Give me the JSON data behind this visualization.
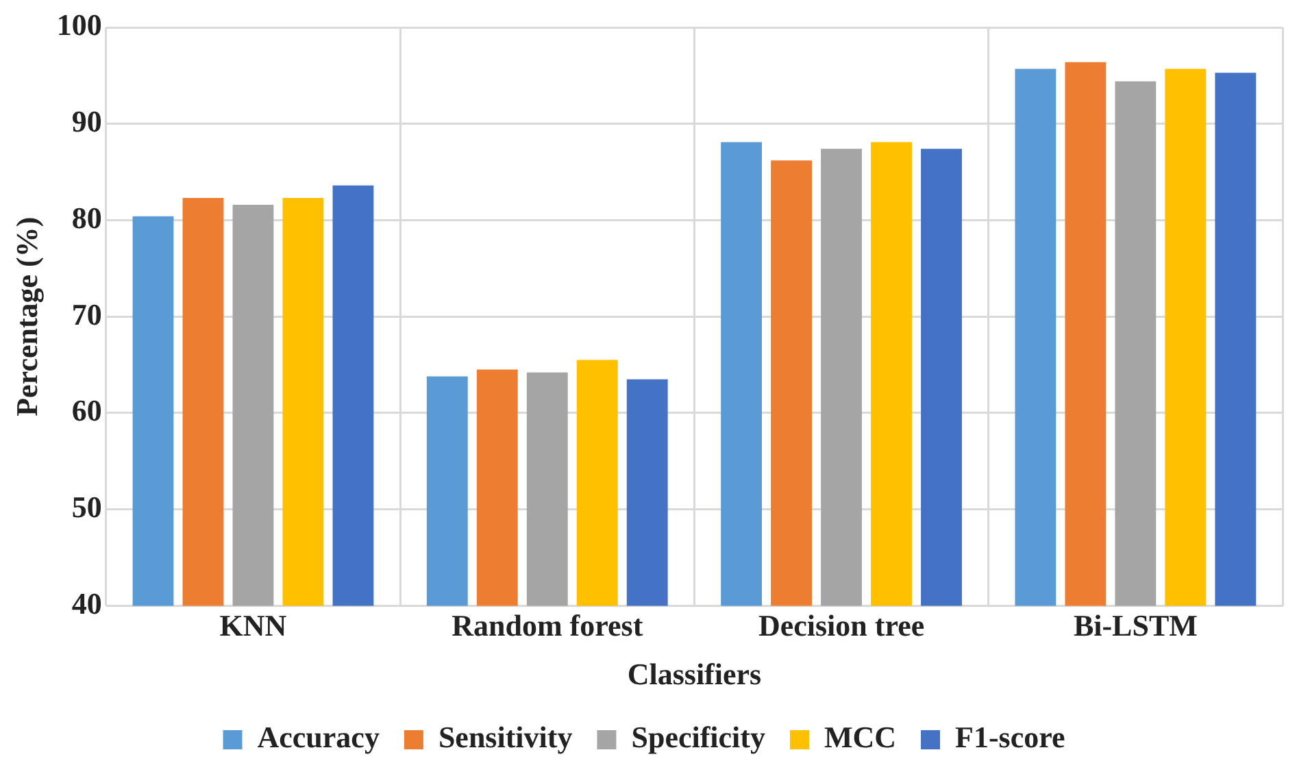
{
  "chart_data": {
    "type": "bar",
    "xlabel": "Classifiers",
    "ylabel": "Percentage (%)",
    "categories": [
      "KNN",
      "Random forest",
      "Decision tree",
      "Bi-LSTM"
    ],
    "series": [
      {
        "name": "Accuracy",
        "color": "#5b9bd5",
        "values": [
          80.4,
          63.8,
          88.1,
          95.7
        ]
      },
      {
        "name": "Sensitivity",
        "color": "#ed7d31",
        "values": [
          82.3,
          64.5,
          86.2,
          96.4
        ]
      },
      {
        "name": "Specificity",
        "color": "#a5a5a5",
        "values": [
          81.6,
          64.2,
          87.4,
          94.4
        ]
      },
      {
        "name": "MCC",
        "color": "#ffc000",
        "values": [
          82.3,
          65.5,
          88.1,
          95.7
        ]
      },
      {
        "name": "F1-score",
        "color": "#4472c4",
        "values": [
          83.6,
          63.5,
          87.4,
          95.3
        ]
      }
    ],
    "ylim": [
      40,
      100
    ],
    "yticks": [
      40,
      50,
      60,
      70,
      80,
      90,
      100
    ],
    "grid": true,
    "legend": "bottom"
  }
}
